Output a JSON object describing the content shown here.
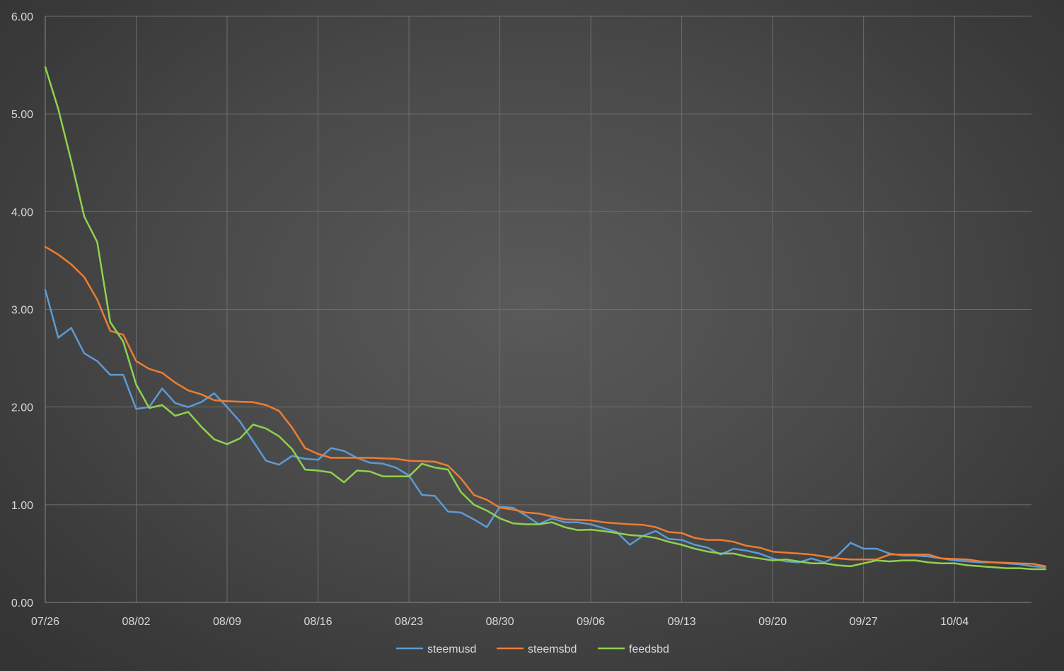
{
  "chart_data": {
    "type": "line",
    "title": "",
    "xlabel": "",
    "ylabel": "",
    "ylim": [
      0,
      6
    ],
    "yticks": [
      "0.00",
      "1.00",
      "2.00",
      "3.00",
      "4.00",
      "5.00",
      "6.00"
    ],
    "xticks": [
      "07/26",
      "08/02",
      "08/09",
      "08/16",
      "08/23",
      "08/30",
      "09/06",
      "09/13",
      "09/20",
      "09/27",
      "10/04"
    ],
    "x_start": "07/26",
    "x_step_days": 1,
    "grid": true,
    "legend_position": "bottom",
    "series": [
      {
        "name": "steemusd",
        "color": "#5b9bd5",
        "values": [
          3.2,
          2.71,
          2.81,
          2.55,
          2.47,
          2.33,
          2.33,
          1.98,
          2.0,
          2.19,
          2.04,
          2.0,
          2.05,
          2.14,
          2.0,
          1.85,
          1.65,
          1.45,
          1.41,
          1.5,
          1.47,
          1.46,
          1.58,
          1.55,
          1.48,
          1.43,
          1.42,
          1.38,
          1.3,
          1.1,
          1.09,
          0.93,
          0.92,
          0.85,
          0.77,
          0.98,
          0.97,
          0.89,
          0.8,
          0.86,
          0.82,
          0.82,
          0.8,
          0.76,
          0.72,
          0.59,
          0.68,
          0.73,
          0.65,
          0.64,
          0.59,
          0.56,
          0.49,
          0.55,
          0.53,
          0.5,
          0.45,
          0.42,
          0.41,
          0.45,
          0.41,
          0.48,
          0.61,
          0.55,
          0.55,
          0.5,
          0.48,
          0.48,
          0.47,
          0.45,
          0.43,
          0.42,
          0.41,
          0.41,
          0.4,
          0.39,
          0.37,
          0.36
        ]
      },
      {
        "name": "steemsbd",
        "color": "#ed7d31",
        "values": [
          3.64,
          3.56,
          3.46,
          3.33,
          3.1,
          2.78,
          2.74,
          2.47,
          2.39,
          2.35,
          2.25,
          2.17,
          2.13,
          2.07,
          2.06,
          2.055,
          2.05,
          2.02,
          1.96,
          1.79,
          1.58,
          1.52,
          1.48,
          1.48,
          1.48,
          1.48,
          1.475,
          1.47,
          1.45,
          1.445,
          1.44,
          1.4,
          1.27,
          1.1,
          1.05,
          0.97,
          0.95,
          0.92,
          0.91,
          0.88,
          0.85,
          0.845,
          0.84,
          0.82,
          0.81,
          0.8,
          0.795,
          0.77,
          0.72,
          0.71,
          0.66,
          0.64,
          0.64,
          0.62,
          0.58,
          0.56,
          0.52,
          0.51,
          0.5,
          0.49,
          0.47,
          0.45,
          0.44,
          0.44,
          0.44,
          0.49,
          0.49,
          0.49,
          0.49,
          0.45,
          0.445,
          0.44,
          0.42,
          0.41,
          0.405,
          0.4,
          0.395,
          0.37
        ]
      },
      {
        "name": "feedsbd",
        "color": "#8fd14f",
        "values": [
          5.48,
          5.05,
          4.52,
          3.95,
          3.69,
          2.87,
          2.67,
          2.23,
          1.99,
          2.02,
          1.91,
          1.95,
          1.8,
          1.67,
          1.62,
          1.68,
          1.82,
          1.78,
          1.7,
          1.57,
          1.36,
          1.35,
          1.33,
          1.23,
          1.35,
          1.34,
          1.29,
          1.29,
          1.29,
          1.42,
          1.38,
          1.36,
          1.13,
          1.0,
          0.94,
          0.86,
          0.81,
          0.8,
          0.8,
          0.82,
          0.77,
          0.74,
          0.745,
          0.73,
          0.71,
          0.69,
          0.68,
          0.66,
          0.62,
          0.59,
          0.55,
          0.52,
          0.5,
          0.5,
          0.47,
          0.45,
          0.43,
          0.44,
          0.42,
          0.4,
          0.4,
          0.38,
          0.37,
          0.4,
          0.43,
          0.42,
          0.43,
          0.43,
          0.41,
          0.4,
          0.4,
          0.38,
          0.37,
          0.36,
          0.35,
          0.35,
          0.34,
          0.34
        ]
      }
    ]
  }
}
